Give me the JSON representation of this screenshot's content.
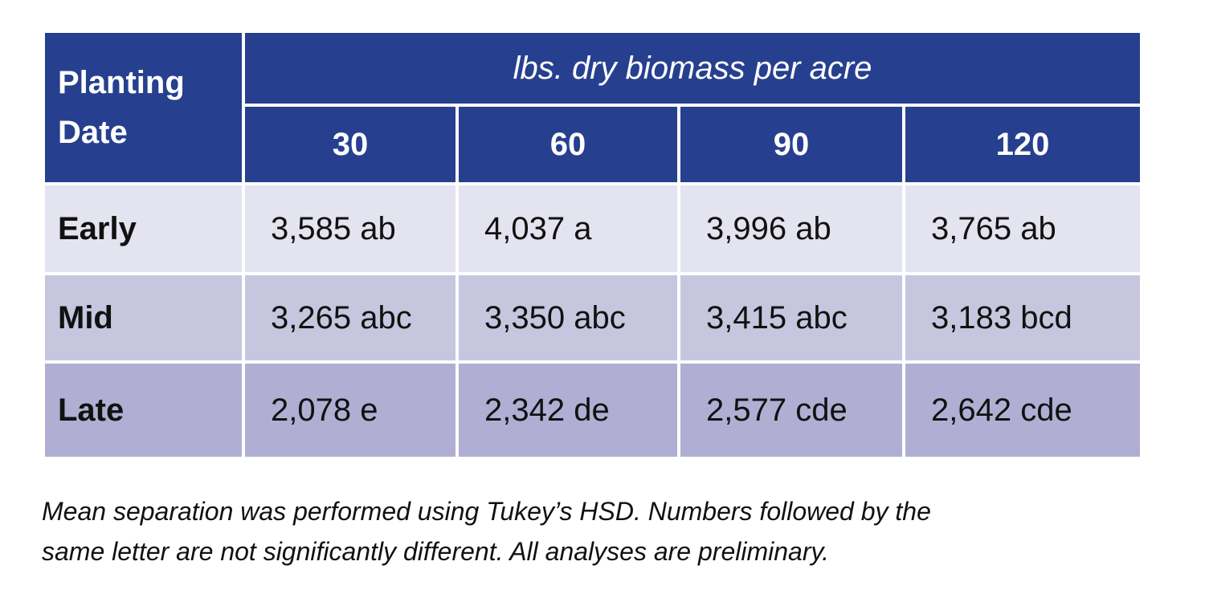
{
  "table": {
    "corner_header": [
      "Planting",
      "Date"
    ],
    "super_header": "lbs. dry biomass per acre",
    "columns": [
      "30",
      "60",
      "90",
      "120"
    ],
    "rows": [
      {
        "label": "Early",
        "cells": [
          "3,585 ab",
          "4,037 a",
          "3,996 ab",
          "3,765 ab"
        ]
      },
      {
        "label": "Mid",
        "cells": [
          "3,265 abc",
          "3,350 abc",
          "3,415 abc",
          "3,183 bcd"
        ]
      },
      {
        "label": "Late",
        "cells": [
          "2,078 e",
          "2,342 de",
          "2,577 cde",
          "2,642 cde"
        ]
      }
    ]
  },
  "footnote": {
    "line1": "Mean separation was performed using Tukey’s HSD. Numbers followed by the",
    "line2": "same letter are not significantly different. All analyses are preliminary."
  },
  "colors": {
    "header_bg": "#26408f",
    "row_early_bg": "#e4e3f0",
    "row_mid_bg": "#c6c6de",
    "row_late_bg": "#b0aed2"
  }
}
